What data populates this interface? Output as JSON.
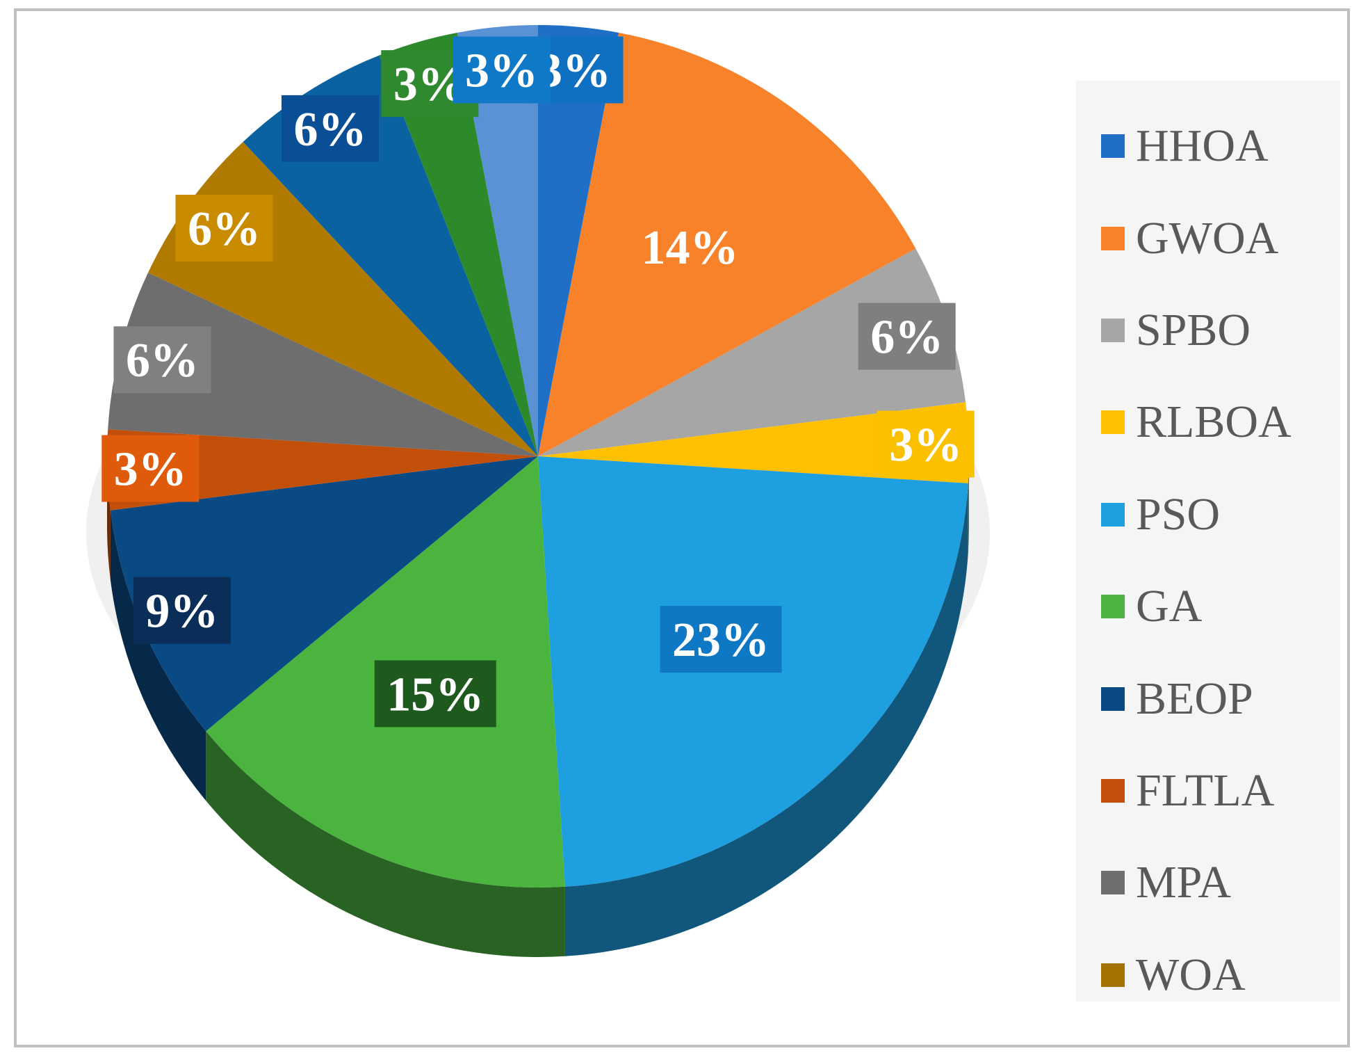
{
  "chart_data": {
    "type": "pie",
    "categories": [
      "HHOA",
      "GWOA",
      "SPBO",
      "RLBOA",
      "PSO",
      "GA",
      "BEOP",
      "FLTLA",
      "MPA",
      "WOA",
      "",
      "",
      ""
    ],
    "values": [
      3,
      14,
      6,
      3,
      23,
      15,
      9,
      3,
      6,
      6,
      6,
      3,
      3
    ],
    "labels": [
      "3%",
      "14%",
      "6%",
      "3%",
      "23%",
      "15%",
      "9%",
      "3%",
      "6%",
      "6%",
      "6%",
      "3%",
      "3%"
    ],
    "colors": [
      "#1f6fc6",
      "#f8822a",
      "#a6a6a6",
      "#ffc000",
      "#1e9fe0",
      "#4ab43f",
      "#0a4a84",
      "#c24f0a",
      "#6e6e6e",
      "#b07a00",
      "#0a63a0",
      "#2d8a2a",
      "#5b92d6"
    ],
    "label_colors": [
      "#0f6fc0",
      "#f8822a",
      "#7f7f7f",
      "#fbc000",
      "#0f78c5",
      "#1e5a1e",
      "#0b2e58",
      "#e05a0c",
      "#808080",
      "#c98c00",
      "#0a4f95",
      "#2f8a2f",
      "#0f79c8"
    ],
    "title": "",
    "legend": {
      "placement": "right",
      "entries": [
        {
          "label": "HHOA",
          "color": "#1f6fc6"
        },
        {
          "label": "GWOA",
          "color": "#f8822a"
        },
        {
          "label": "SPBO",
          "color": "#a6a6a6"
        },
        {
          "label": "RLBOA",
          "color": "#ffc000"
        },
        {
          "label": "PSO",
          "color": "#1e9fe0"
        },
        {
          "label": "GA",
          "color": "#4ab43f"
        },
        {
          "label": "BEOP",
          "color": "#0a4a84"
        },
        {
          "label": "FLTLA",
          "color": "#c24f0a"
        },
        {
          "label": "MPA",
          "color": "#6e6e6e"
        },
        {
          "label": "WOA",
          "color": "#a37200"
        }
      ]
    }
  }
}
